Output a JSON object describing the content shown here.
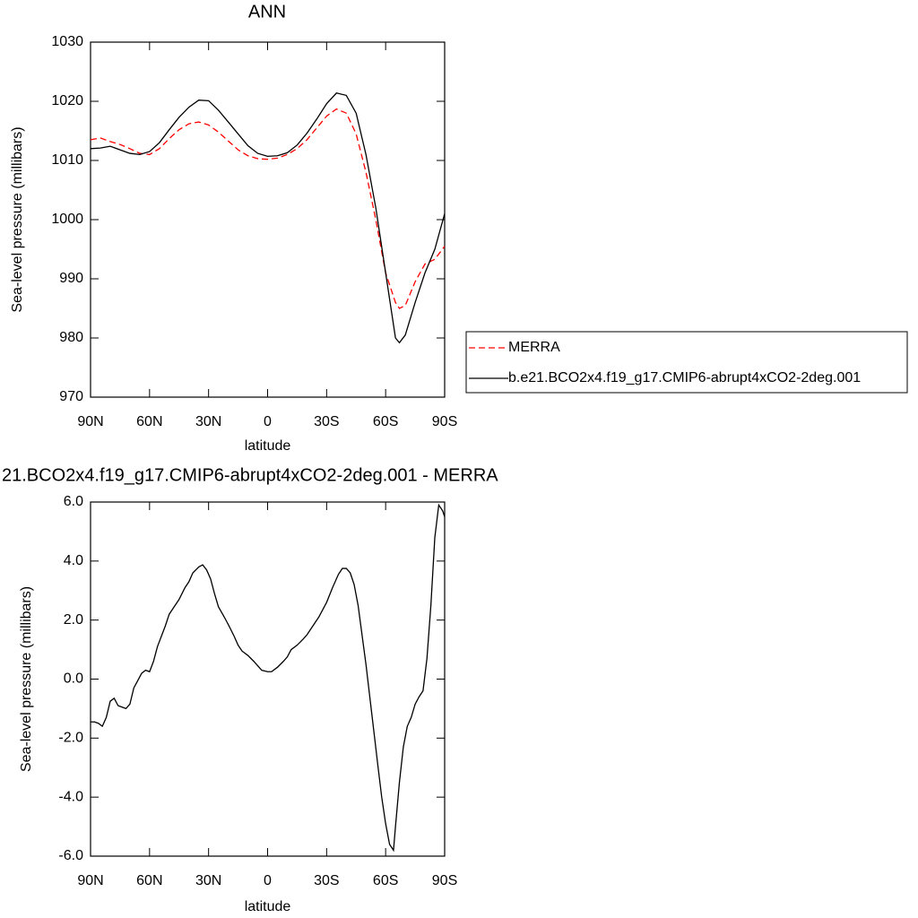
{
  "chart_data": [
    {
      "type": "line",
      "title": "ANN",
      "x_label": "latitude",
      "y_label": "Sea-level pressure (millibars)",
      "x": [
        90,
        85,
        80,
        75,
        70,
        65,
        60,
        55,
        50,
        45,
        40,
        35,
        30,
        25,
        20,
        15,
        10,
        5,
        0,
        -5,
        -10,
        -15,
        -20,
        -25,
        -30,
        -35,
        -40,
        -45,
        -50,
        -55,
        -60,
        -65,
        -67,
        -70,
        -75,
        -80,
        -85,
        -90
      ],
      "xlim": [
        90,
        -90
      ],
      "xticks": [
        {
          "value": 90,
          "label": "90N"
        },
        {
          "value": 60,
          "label": "60N"
        },
        {
          "value": 30,
          "label": "30N"
        },
        0,
        {
          "value": -30,
          "label": "30S"
        },
        {
          "value": -60,
          "label": "60S"
        },
        {
          "value": -90,
          "label": "90S"
        }
      ],
      "ylim": [
        970,
        1030
      ],
      "yticks": [
        970,
        980,
        990,
        1000,
        1010,
        1020,
        1030
      ],
      "legend": "right",
      "series": [
        {
          "name": "MERRA",
          "color": "#ff0000",
          "dashed": true,
          "values": [
            1013.5,
            1013.8,
            1013.2,
            1012.7,
            1012.0,
            1011.2,
            1011.0,
            1012.0,
            1013.7,
            1015.2,
            1016.2,
            1016.5,
            1016.0,
            1014.8,
            1013.3,
            1011.8,
            1010.8,
            1010.3,
            1010.2,
            1010.4,
            1011.0,
            1012.0,
            1013.5,
            1015.5,
            1017.5,
            1018.7,
            1018.0,
            1014.5,
            1008,
            1000,
            991,
            986,
            985,
            985.5,
            989.5,
            992.5,
            993.3,
            995.5
          ]
        },
        {
          "name": "b.e21.BCO2x4.f19_g17.CMIP6-abrupt4xCO2-2deg.001",
          "color": "#000000",
          "dashed": false,
          "values": [
            1012.0,
            1012.1,
            1012.4,
            1011.8,
            1011.2,
            1011.0,
            1011.5,
            1013,
            1015.2,
            1017.3,
            1019,
            1020.2,
            1020.1,
            1018.5,
            1016.5,
            1014.5,
            1012.5,
            1011.2,
            1010.7,
            1010.8,
            1011.3,
            1012.6,
            1014.6,
            1017,
            1019.6,
            1021.4,
            1021,
            1018,
            1011,
            1002,
            991,
            980,
            979.2,
            980.5,
            986,
            991,
            995,
            1001
          ]
        }
      ]
    },
    {
      "type": "line",
      "title": "21.BCO2x4.f19_g17.CMIP6-abrupt4xCO2-2deg.001 - MERRA",
      "x_label": "latitude",
      "y_label": "Sea-level pressure (millibars)",
      "x": [
        90,
        88,
        86,
        84,
        82,
        80,
        78,
        76,
        74,
        72,
        70,
        68,
        66,
        64,
        62,
        60,
        58,
        56,
        52,
        50,
        48,
        45,
        42,
        40,
        38,
        35,
        33,
        31,
        29,
        27,
        25,
        22,
        20,
        17,
        15,
        13,
        10,
        7,
        5,
        3,
        0,
        -2,
        -5,
        -8,
        -10,
        -12,
        -15,
        -18,
        -20,
        -23,
        -26,
        -30,
        -33,
        -36,
        -38,
        -40,
        -42,
        -44,
        -46,
        -48,
        -50,
        -53,
        -56,
        -58,
        -60,
        -62,
        -64,
        -65,
        -67,
        -69,
        -71,
        -73,
        -75,
        -77,
        -79,
        -81,
        -83,
        -85,
        -87,
        -89,
        -90
      ],
      "xlim": [
        90,
        -90
      ],
      "xticks": [
        {
          "value": 90,
          "label": "90N"
        },
        {
          "value": 60,
          "label": "60N"
        },
        {
          "value": 30,
          "label": "30N"
        },
        0,
        {
          "value": -30,
          "label": "30S"
        },
        {
          "value": -60,
          "label": "60S"
        },
        {
          "value": -90,
          "label": "90S"
        }
      ],
      "ylim": [
        -6,
        6
      ],
      "yticks": [
        {
          "value": -6,
          "label": "-6.0"
        },
        {
          "value": -4,
          "label": "-4.0"
        },
        {
          "value": -2,
          "label": "-2.0"
        },
        {
          "value": 0,
          "label": "0.0"
        },
        {
          "value": 2,
          "label": "2.0"
        },
        {
          "value": 4,
          "label": "4.0"
        },
        {
          "value": 6,
          "label": "6.0"
        }
      ],
      "color": "#000000",
      "values": [
        -1.45,
        -1.45,
        -1.5,
        -1.6,
        -1.3,
        -0.75,
        -0.65,
        -0.9,
        -0.95,
        -1.0,
        -0.85,
        -0.3,
        -0.05,
        0.2,
        0.3,
        0.25,
        0.6,
        1.1,
        1.8,
        2.2,
        2.4,
        2.7,
        3.1,
        3.3,
        3.6,
        3.8,
        3.87,
        3.7,
        3.4,
        2.9,
        2.45,
        2.1,
        1.85,
        1.45,
        1.15,
        0.95,
        0.8,
        0.6,
        0.45,
        0.3,
        0.25,
        0.25,
        0.4,
        0.6,
        0.75,
        1.0,
        1.15,
        1.35,
        1.5,
        1.8,
        2.1,
        2.6,
        3.1,
        3.55,
        3.75,
        3.75,
        3.6,
        3.2,
        2.5,
        1.5,
        0.5,
        -1.2,
        -2.9,
        -4.0,
        -4.9,
        -5.6,
        -5.8,
        -5.0,
        -3.5,
        -2.3,
        -1.6,
        -1.3,
        -0.85,
        -0.6,
        -0.4,
        0.7,
        2.5,
        4.8,
        5.9,
        5.7,
        5.5
      ]
    }
  ]
}
